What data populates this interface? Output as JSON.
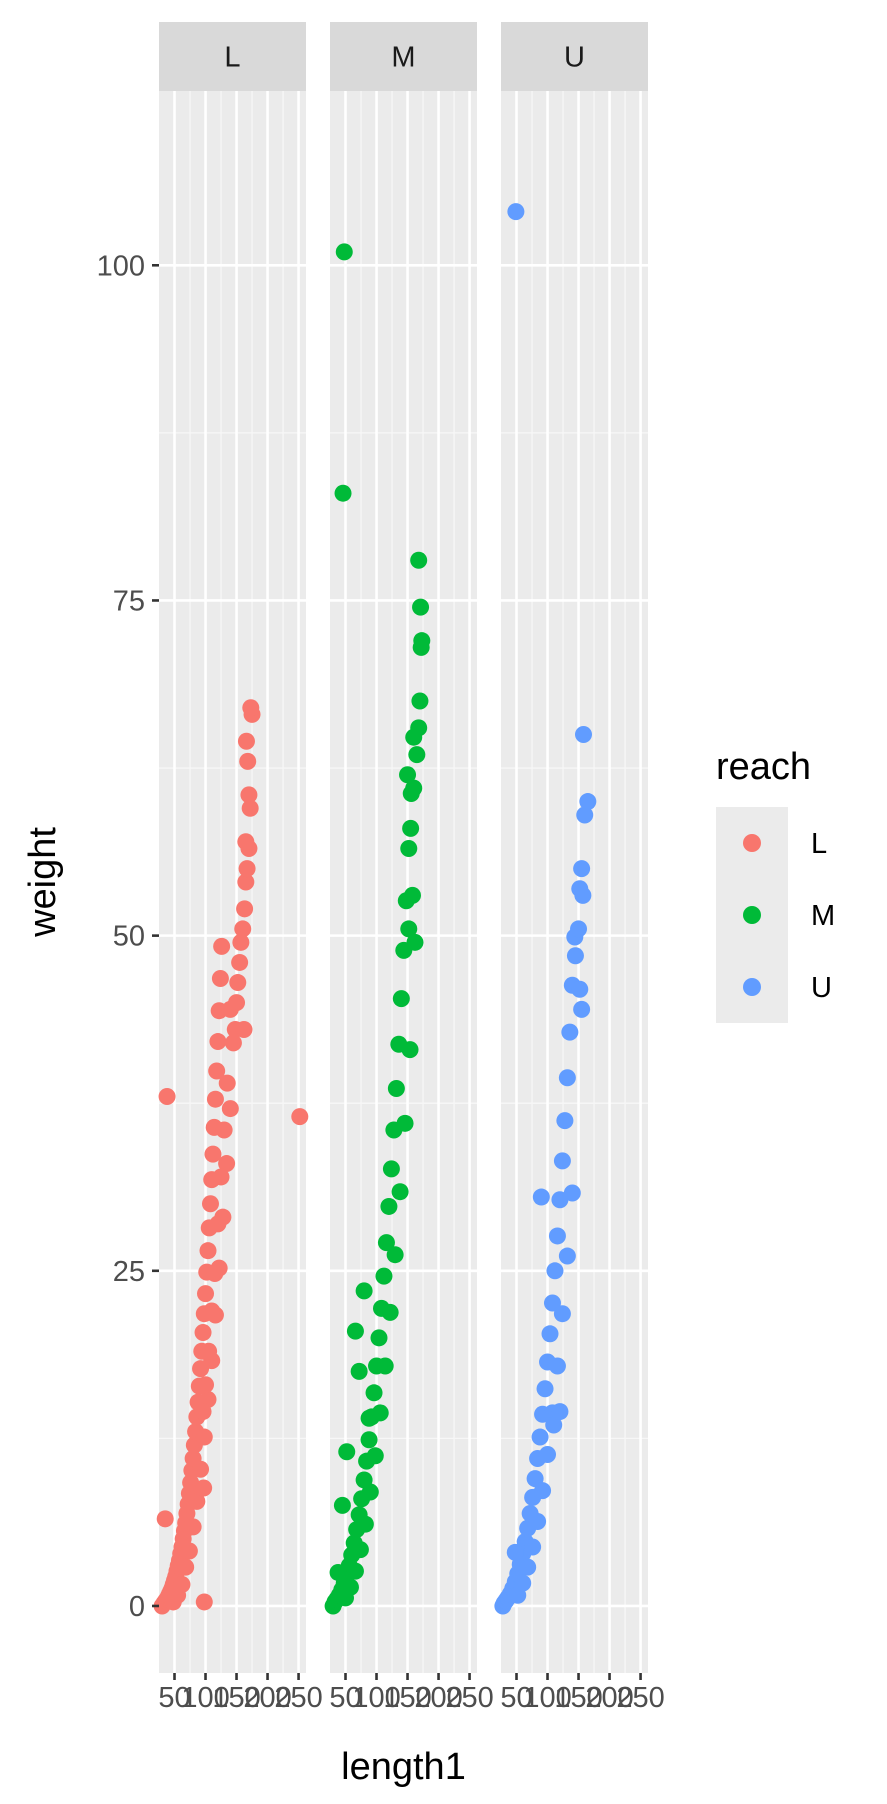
{
  "chart_data": {
    "type": "scatter",
    "xlabel": "length1",
    "ylabel": "weight",
    "xlim": [
      25,
      262
    ],
    "ylim": [
      -5,
      113
    ],
    "x_ticks": [
      50,
      100,
      150,
      200,
      250
    ],
    "y_ticks": [
      0,
      25,
      50,
      75,
      100
    ],
    "grid": true,
    "legend": {
      "title": "reach",
      "position": "right",
      "entries": [
        "L",
        "M",
        "U"
      ]
    },
    "facets": [
      "L",
      "M",
      "U"
    ],
    "series": [
      {
        "name": "L",
        "color": "#F8766D",
        "points": [
          [
            30,
            0
          ],
          [
            33,
            0.2
          ],
          [
            36,
            0.4
          ],
          [
            38,
            0.5
          ],
          [
            40,
            0.7
          ],
          [
            42,
            0.9
          ],
          [
            44,
            1.1
          ],
          [
            46,
            1.3
          ],
          [
            48,
            1.6
          ],
          [
            50,
            1.9
          ],
          [
            52,
            2.2
          ],
          [
            54,
            2.6
          ],
          [
            56,
            3.0
          ],
          [
            58,
            3.4
          ],
          [
            60,
            3.9
          ],
          [
            62,
            4.4
          ],
          [
            64,
            5.0
          ],
          [
            66,
            5.6
          ],
          [
            68,
            6.2
          ],
          [
            70,
            6.9
          ],
          [
            72,
            7.6
          ],
          [
            74,
            8.4
          ],
          [
            76,
            9.2
          ],
          [
            78,
            10.1
          ],
          [
            80,
            11.0
          ],
          [
            82,
            12.0
          ],
          [
            84,
            13.0
          ],
          [
            86,
            14.1
          ],
          [
            88,
            15.2
          ],
          [
            90,
            16.4
          ],
          [
            92,
            17.7
          ],
          [
            94,
            19.0
          ],
          [
            96,
            20.4
          ],
          [
            98,
            21.8
          ],
          [
            100,
            23.3
          ],
          [
            102,
            24.9
          ],
          [
            104,
            26.5
          ],
          [
            106,
            28.2
          ],
          [
            108,
            30.0
          ],
          [
            110,
            31.8
          ],
          [
            112,
            33.7
          ],
          [
            114,
            35.7
          ],
          [
            116,
            37.8
          ],
          [
            118,
            39.9
          ],
          [
            120,
            42.1
          ],
          [
            122,
            44.4
          ],
          [
            124,
            46.8
          ],
          [
            126,
            49.2
          ],
          [
            48,
            0.3
          ],
          [
            55,
            0.8
          ],
          [
            62,
            1.6
          ],
          [
            68,
            2.9
          ],
          [
            74,
            4.1
          ],
          [
            80,
            5.9
          ],
          [
            86,
            7.8
          ],
          [
            92,
            10.2
          ],
          [
            98,
            12.6
          ],
          [
            104,
            15.4
          ],
          [
            110,
            18.3
          ],
          [
            116,
            21.7
          ],
          [
            122,
            25.2
          ],
          [
            128,
            29.0
          ],
          [
            134,
            33.0
          ],
          [
            140,
            37.1
          ],
          [
            96,
            14.5
          ],
          [
            100,
            16.5
          ],
          [
            105,
            19.0
          ],
          [
            110,
            22.0
          ],
          [
            115,
            24.8
          ],
          [
            120,
            28.5
          ],
          [
            125,
            32.0
          ],
          [
            130,
            35.5
          ],
          [
            135,
            39.0
          ],
          [
            35,
            6.5
          ],
          [
            38,
            38.0
          ],
          [
            97,
            8.8
          ],
          [
            98,
            0.3
          ],
          [
            252,
            36.5
          ],
          [
            140,
            44.5
          ],
          [
            145,
            42.0
          ],
          [
            148,
            43.0
          ],
          [
            150,
            45.0
          ],
          [
            152,
            46.5
          ],
          [
            155,
            48.0
          ],
          [
            157,
            49.5
          ],
          [
            160,
            50.5
          ],
          [
            163,
            52.0
          ],
          [
            165,
            54.0
          ],
          [
            167,
            55.0
          ],
          [
            170,
            56.5
          ],
          [
            165,
            57.0
          ],
          [
            172,
            59.5
          ],
          [
            170,
            60.5
          ],
          [
            168,
            63.0
          ],
          [
            166,
            64.5
          ],
          [
            175,
            66.5
          ],
          [
            173,
            67.0
          ],
          [
            162,
            43.0
          ]
        ]
      },
      {
        "name": "M",
        "color": "#00BA38",
        "points": [
          [
            30,
            0
          ],
          [
            33,
            0.3
          ],
          [
            36,
            0.5
          ],
          [
            40,
            0.8
          ],
          [
            44,
            1.2
          ],
          [
            48,
            1.7
          ],
          [
            52,
            2.3
          ],
          [
            56,
            3.0
          ],
          [
            60,
            3.8
          ],
          [
            64,
            4.7
          ],
          [
            68,
            5.7
          ],
          [
            72,
            6.8
          ],
          [
            76,
            8.0
          ],
          [
            80,
            9.4
          ],
          [
            84,
            10.8
          ],
          [
            88,
            12.4
          ],
          [
            92,
            14.1
          ],
          [
            96,
            15.9
          ],
          [
            100,
            17.9
          ],
          [
            104,
            20.0
          ],
          [
            108,
            22.2
          ],
          [
            112,
            24.6
          ],
          [
            116,
            27.1
          ],
          [
            120,
            29.8
          ],
          [
            124,
            32.6
          ],
          [
            128,
            35.5
          ],
          [
            132,
            38.6
          ],
          [
            136,
            41.9
          ],
          [
            140,
            45.3
          ],
          [
            144,
            48.9
          ],
          [
            148,
            52.6
          ],
          [
            152,
            56.5
          ],
          [
            156,
            60.6
          ],
          [
            160,
            64.8
          ],
          [
            50,
            0.6
          ],
          [
            58,
            1.4
          ],
          [
            66,
            2.6
          ],
          [
            74,
            4.2
          ],
          [
            82,
            6.1
          ],
          [
            90,
            8.5
          ],
          [
            98,
            11.2
          ],
          [
            106,
            14.4
          ],
          [
            114,
            17.9
          ],
          [
            122,
            21.9
          ],
          [
            130,
            26.2
          ],
          [
            138,
            30.9
          ],
          [
            146,
            36.0
          ],
          [
            154,
            41.5
          ],
          [
            38,
            2.5
          ],
          [
            45,
            7.5
          ],
          [
            52,
            11.5
          ],
          [
            66,
            20.5
          ],
          [
            72,
            17.5
          ],
          [
            80,
            23.5
          ],
          [
            88,
            14.0
          ],
          [
            48,
            101.0
          ],
          [
            46,
            83.0
          ],
          [
            150,
            62.0
          ],
          [
            155,
            58.0
          ],
          [
            160,
            61.0
          ],
          [
            165,
            63.5
          ],
          [
            168,
            65.5
          ],
          [
            170,
            67.5
          ],
          [
            172,
            71.5
          ],
          [
            173,
            72.0
          ],
          [
            171,
            74.5
          ],
          [
            168,
            78.0
          ],
          [
            152,
            50.5
          ],
          [
            158,
            53.0
          ],
          [
            162,
            49.5
          ]
        ]
      },
      {
        "name": "U",
        "color": "#619CFF",
        "points": [
          [
            28,
            0
          ],
          [
            30,
            0.2
          ],
          [
            33,
            0.4
          ],
          [
            36,
            0.6
          ],
          [
            40,
            0.9
          ],
          [
            44,
            1.3
          ],
          [
            48,
            1.8
          ],
          [
            52,
            2.4
          ],
          [
            56,
            3.1
          ],
          [
            60,
            3.9
          ],
          [
            64,
            4.8
          ],
          [
            68,
            5.8
          ],
          [
            72,
            6.9
          ],
          [
            76,
            8.1
          ],
          [
            80,
            9.5
          ],
          [
            84,
            11.0
          ],
          [
            88,
            12.6
          ],
          [
            92,
            14.3
          ],
          [
            96,
            16.2
          ],
          [
            100,
            18.2
          ],
          [
            104,
            20.3
          ],
          [
            108,
            22.6
          ],
          [
            112,
            25.0
          ],
          [
            116,
            27.6
          ],
          [
            120,
            30.3
          ],
          [
            124,
            33.2
          ],
          [
            128,
            36.2
          ],
          [
            132,
            39.4
          ],
          [
            136,
            42.8
          ],
          [
            140,
            46.3
          ],
          [
            144,
            49.9
          ],
          [
            52,
            0.8
          ],
          [
            60,
            1.7
          ],
          [
            68,
            2.9
          ],
          [
            76,
            4.4
          ],
          [
            84,
            6.3
          ],
          [
            92,
            8.6
          ],
          [
            100,
            11.3
          ],
          [
            108,
            14.4
          ],
          [
            116,
            17.9
          ],
          [
            124,
            21.8
          ],
          [
            132,
            26.1
          ],
          [
            140,
            30.8
          ],
          [
            48,
            4.0
          ],
          [
            90,
            30.5
          ],
          [
            110,
            13.5
          ],
          [
            120,
            14.5
          ],
          [
            49,
            104.0
          ],
          [
            145,
            48.5
          ],
          [
            150,
            50.5
          ],
          [
            152,
            46.0
          ],
          [
            155,
            44.5
          ],
          [
            152,
            53.5
          ],
          [
            155,
            55.0
          ],
          [
            157,
            53.0
          ],
          [
            160,
            59.0
          ],
          [
            165,
            60.0
          ],
          [
            158,
            65.0
          ]
        ]
      }
    ]
  }
}
